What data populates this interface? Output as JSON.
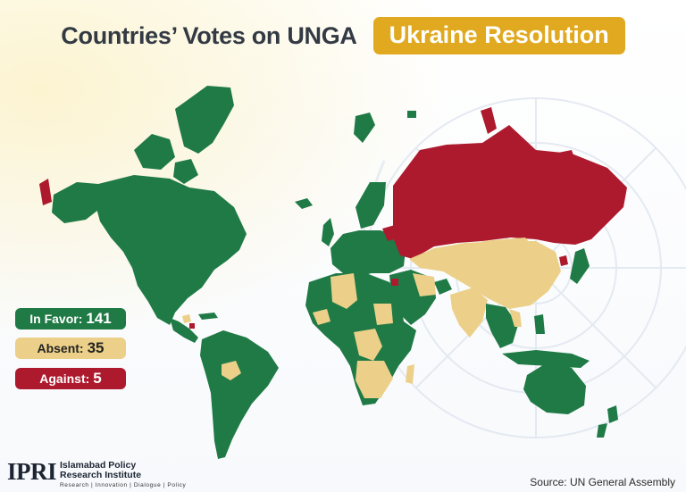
{
  "title": {
    "main": "Countries’ Votes on UNGA",
    "highlight": "Ukraine Resolution"
  },
  "legend": [
    {
      "label": "In Favor:",
      "count": "141",
      "color": "#1f7a46"
    },
    {
      "label": "Absent:",
      "count": "35",
      "color": "#ecd089"
    },
    {
      "label": "Against:",
      "count": "5",
      "color": "#ad1a2e"
    }
  ],
  "colors": {
    "in_favor": "#1f7a46",
    "absent": "#ecd089",
    "against": "#ad1a2e",
    "title_pill": "#e0a91f",
    "title_text": "#333a44"
  },
  "logo": {
    "mark": "IPRI",
    "name_line1": "Islamabad Policy",
    "name_line2": "Research Institute",
    "tagline": "Research | Innovation | Dialogue | Policy"
  },
  "source": "Source: UN General Assembly"
}
